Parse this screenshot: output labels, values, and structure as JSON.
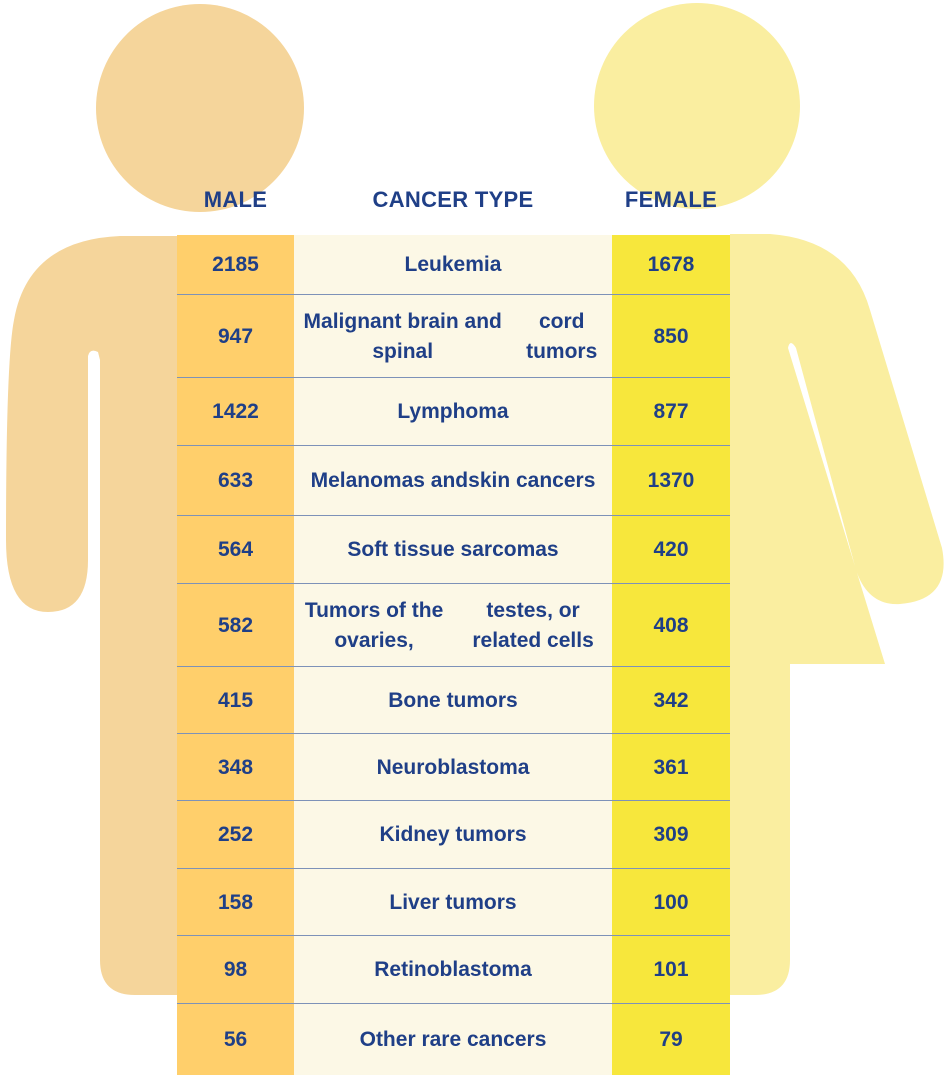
{
  "headers": {
    "male": "MALE",
    "cancer_type": "CANCER TYPE",
    "female": "FEMALE"
  },
  "colors": {
    "male_figure": "#f5d59b",
    "female_figure": "#faeea0",
    "male_column": "#ffcf6b",
    "type_column": "#fcf8e6",
    "female_column": "#f7e73c",
    "text": "#1f3f87",
    "row_divider": "#7d92b8"
  },
  "icons": {
    "male_figure": "male-silhouette-icon",
    "female_figure": "female-silhouette-icon"
  },
  "chart_data": {
    "type": "table",
    "columns": [
      "MALE",
      "CANCER TYPE",
      "FEMALE"
    ],
    "rows": [
      {
        "male": "2185",
        "type": [
          "Leukemia"
        ],
        "female": "1678"
      },
      {
        "male": "947",
        "type": [
          "Malignant brain and spinal",
          "cord tumors"
        ],
        "female": "850"
      },
      {
        "male": "1422",
        "type": [
          "Lymphoma"
        ],
        "female": "877"
      },
      {
        "male": "633",
        "type": [
          "Melanomas and",
          "skin cancers"
        ],
        "female": "1370"
      },
      {
        "male": "564",
        "type": [
          "Soft tissue sarcomas"
        ],
        "female": "420"
      },
      {
        "male": "582",
        "type": [
          "Tumors of the ovaries,",
          "testes, or related cells"
        ],
        "female": "408"
      },
      {
        "male": "415",
        "type": [
          "Bone tumors"
        ],
        "female": "342"
      },
      {
        "male": "348",
        "type": [
          "Neuroblastoma"
        ],
        "female": "361"
      },
      {
        "male": "252",
        "type": [
          "Kidney tumors"
        ],
        "female": "309"
      },
      {
        "male": "158",
        "type": [
          "Liver tumors"
        ],
        "female": "100"
      },
      {
        "male": "98",
        "type": [
          "Retinoblastoma"
        ],
        "female": "101"
      },
      {
        "male": "56",
        "type": [
          "Other rare cancers"
        ],
        "female": "79"
      }
    ]
  }
}
